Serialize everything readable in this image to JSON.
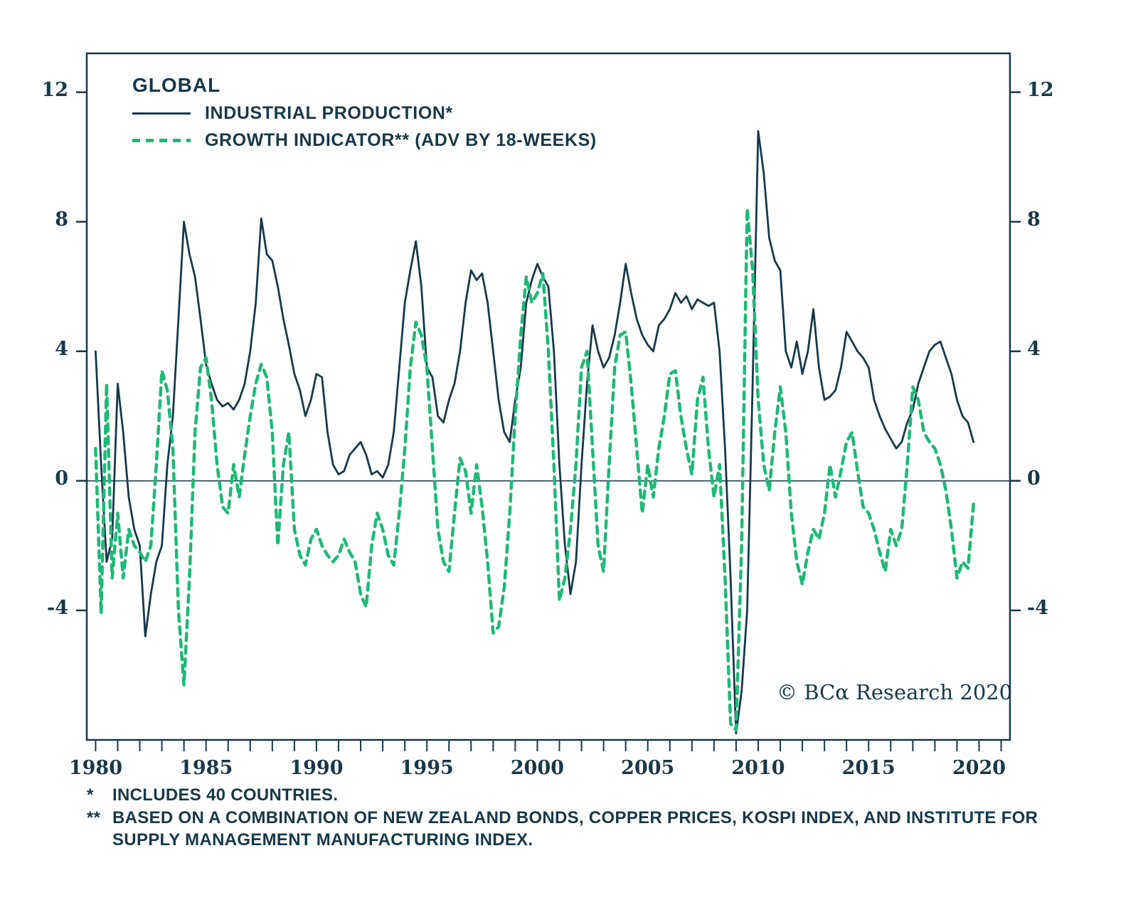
{
  "legend": {
    "title": "GLOBAL",
    "series1": "INDUSTRIAL PRODUCTION*",
    "series2": "GROWTH INDICATOR** (ADV BY 18-WEEKS)"
  },
  "copyright": "© BCα Research 2020",
  "footnotes": [
    {
      "marker": "*",
      "text": "INCLUDES 40 COUNTRIES."
    },
    {
      "marker": "**",
      "text": "BASED ON A COMBINATION OF NEW ZEALAND BONDS, COPPER PRICES, KOSPI INDEX, AND INSTITUTE FOR SUPPLY MANAGEMENT MANUFACTURING INDEX."
    }
  ],
  "chart_data": {
    "type": "line",
    "title": "GLOBAL",
    "xlabel": "",
    "ylabel": "",
    "x_start": 1980,
    "x_step": 0.25,
    "x_domain": [
      1979.6,
      2021.4
    ],
    "y_domain": [
      -8,
      13.2
    ],
    "y_ticks": [
      12,
      8,
      4,
      0,
      -4
    ],
    "x_tick_labels": [
      1980,
      1985,
      1990,
      1995,
      2000,
      2005,
      2010,
      2015,
      2020
    ],
    "x_minor_ticks": {
      "start": 1980,
      "end": 2021,
      "step": 1
    },
    "zero_line": true,
    "grid": false,
    "legend_position": "top-left",
    "colors": {
      "axis": "#17384a",
      "industrial_production": "#17384a",
      "growth_indicator": "#1fb877"
    },
    "series": [
      {
        "name": "INDUSTRIAL PRODUCTION*",
        "style": "solid",
        "color_key": "industrial_production",
        "values": [
          4.0,
          0.5,
          -2.5,
          -1.8,
          3.0,
          1.5,
          -0.5,
          -1.5,
          -2.0,
          -4.8,
          -3.5,
          -2.5,
          -2.0,
          0.5,
          2.0,
          5.0,
          8.0,
          7.0,
          6.3,
          5.0,
          3.6,
          3.0,
          2.5,
          2.3,
          2.4,
          2.2,
          2.5,
          3.0,
          4.0,
          5.5,
          8.1,
          7.0,
          6.8,
          6.0,
          5.0,
          4.2,
          3.3,
          2.8,
          2.0,
          2.5,
          3.3,
          3.2,
          1.5,
          0.5,
          0.2,
          0.3,
          0.8,
          1.0,
          1.2,
          0.8,
          0.2,
          0.3,
          0.1,
          0.5,
          1.5,
          3.5,
          5.5,
          6.5,
          7.4,
          6.0,
          3.5,
          3.2,
          2.0,
          1.8,
          2.5,
          3.0,
          4.0,
          5.5,
          6.5,
          6.2,
          6.4,
          5.5,
          4.0,
          2.5,
          1.5,
          1.2,
          2.5,
          3.5,
          5.5,
          6.2,
          6.7,
          6.3,
          6.0,
          4.0,
          0.5,
          -2.0,
          -3.5,
          -2.5,
          0.5,
          3.0,
          4.8,
          4.0,
          3.5,
          3.8,
          4.5,
          5.5,
          6.7,
          5.8,
          5.0,
          4.5,
          4.2,
          4.0,
          4.8,
          5.0,
          5.3,
          5.8,
          5.5,
          5.7,
          5.3,
          5.6,
          5.5,
          5.4,
          5.5,
          4.0,
          1.0,
          -3.0,
          -7.8,
          -6.5,
          -4.0,
          3.0,
          10.8,
          9.5,
          7.5,
          6.8,
          6.5,
          4.0,
          3.5,
          4.3,
          3.3,
          4.0,
          5.3,
          3.5,
          2.5,
          2.6,
          2.8,
          3.5,
          4.6,
          4.3,
          4.0,
          3.8,
          3.5,
          2.5,
          2.0,
          1.6,
          1.3,
          1.0,
          1.2,
          1.8,
          2.2,
          3.0,
          3.5,
          4.0,
          4.2,
          4.3,
          3.8,
          3.3,
          2.5,
          2.0,
          1.8,
          1.2
        ]
      },
      {
        "name": "GROWTH INDICATOR** (ADV BY 18-WEEKS)",
        "style": "dashed",
        "color_key": "growth_indicator",
        "values": [
          1.0,
          -4.1,
          3.0,
          -3.0,
          -1.0,
          -3.0,
          -1.5,
          -2.0,
          -2.2,
          -2.5,
          -2.0,
          0.5,
          3.4,
          2.8,
          1.0,
          -4.0,
          -6.3,
          -3.0,
          1.5,
          3.5,
          3.8,
          2.5,
          0.5,
          -0.8,
          -1.0,
          0.5,
          -0.5,
          0.8,
          2.0,
          3.0,
          3.6,
          3.2,
          1.5,
          -2.0,
          0.5,
          1.5,
          -1.5,
          -2.3,
          -2.6,
          -1.8,
          -1.5,
          -2.0,
          -2.3,
          -2.5,
          -2.3,
          -1.8,
          -2.2,
          -2.5,
          -3.5,
          -3.9,
          -2.0,
          -1.0,
          -1.5,
          -2.3,
          -2.6,
          -1.0,
          1.0,
          3.5,
          4.9,
          4.5,
          3.5,
          1.0,
          -1.5,
          -2.5,
          -2.8,
          -1.0,
          0.7,
          0.3,
          -1.0,
          0.5,
          -0.8,
          -2.5,
          -4.7,
          -4.5,
          -3.3,
          -1.0,
          2.0,
          4.5,
          6.3,
          5.5,
          5.8,
          6.4,
          4.0,
          0.5,
          -3.7,
          -3.0,
          -1.5,
          0.5,
          3.5,
          4.0,
          1.0,
          -2.0,
          -2.8,
          0.5,
          3.5,
          4.5,
          4.6,
          3.0,
          1.0,
          -1.0,
          0.5,
          -0.5,
          1.0,
          2.0,
          3.3,
          3.4,
          2.0,
          1.0,
          0.2,
          2.5,
          3.2,
          1.0,
          -0.5,
          0.5,
          -3.0,
          -7.5,
          -7.7,
          -2.0,
          8.4,
          6.5,
          2.5,
          0.5,
          -0.3,
          1.5,
          2.9,
          1.5,
          -1.0,
          -2.5,
          -3.2,
          -2.2,
          -1.5,
          -1.8,
          -1.0,
          0.5,
          -0.5,
          0.3,
          1.2,
          1.5,
          0.3,
          -0.8,
          -1.0,
          -1.5,
          -2.2,
          -2.8,
          -1.5,
          -2.0,
          -1.5,
          0.5,
          2.9,
          2.5,
          1.5,
          1.2,
          1.0,
          0.5,
          -0.3,
          -1.5,
          -3.0,
          -2.5,
          -2.7,
          -0.7
        ]
      }
    ]
  }
}
